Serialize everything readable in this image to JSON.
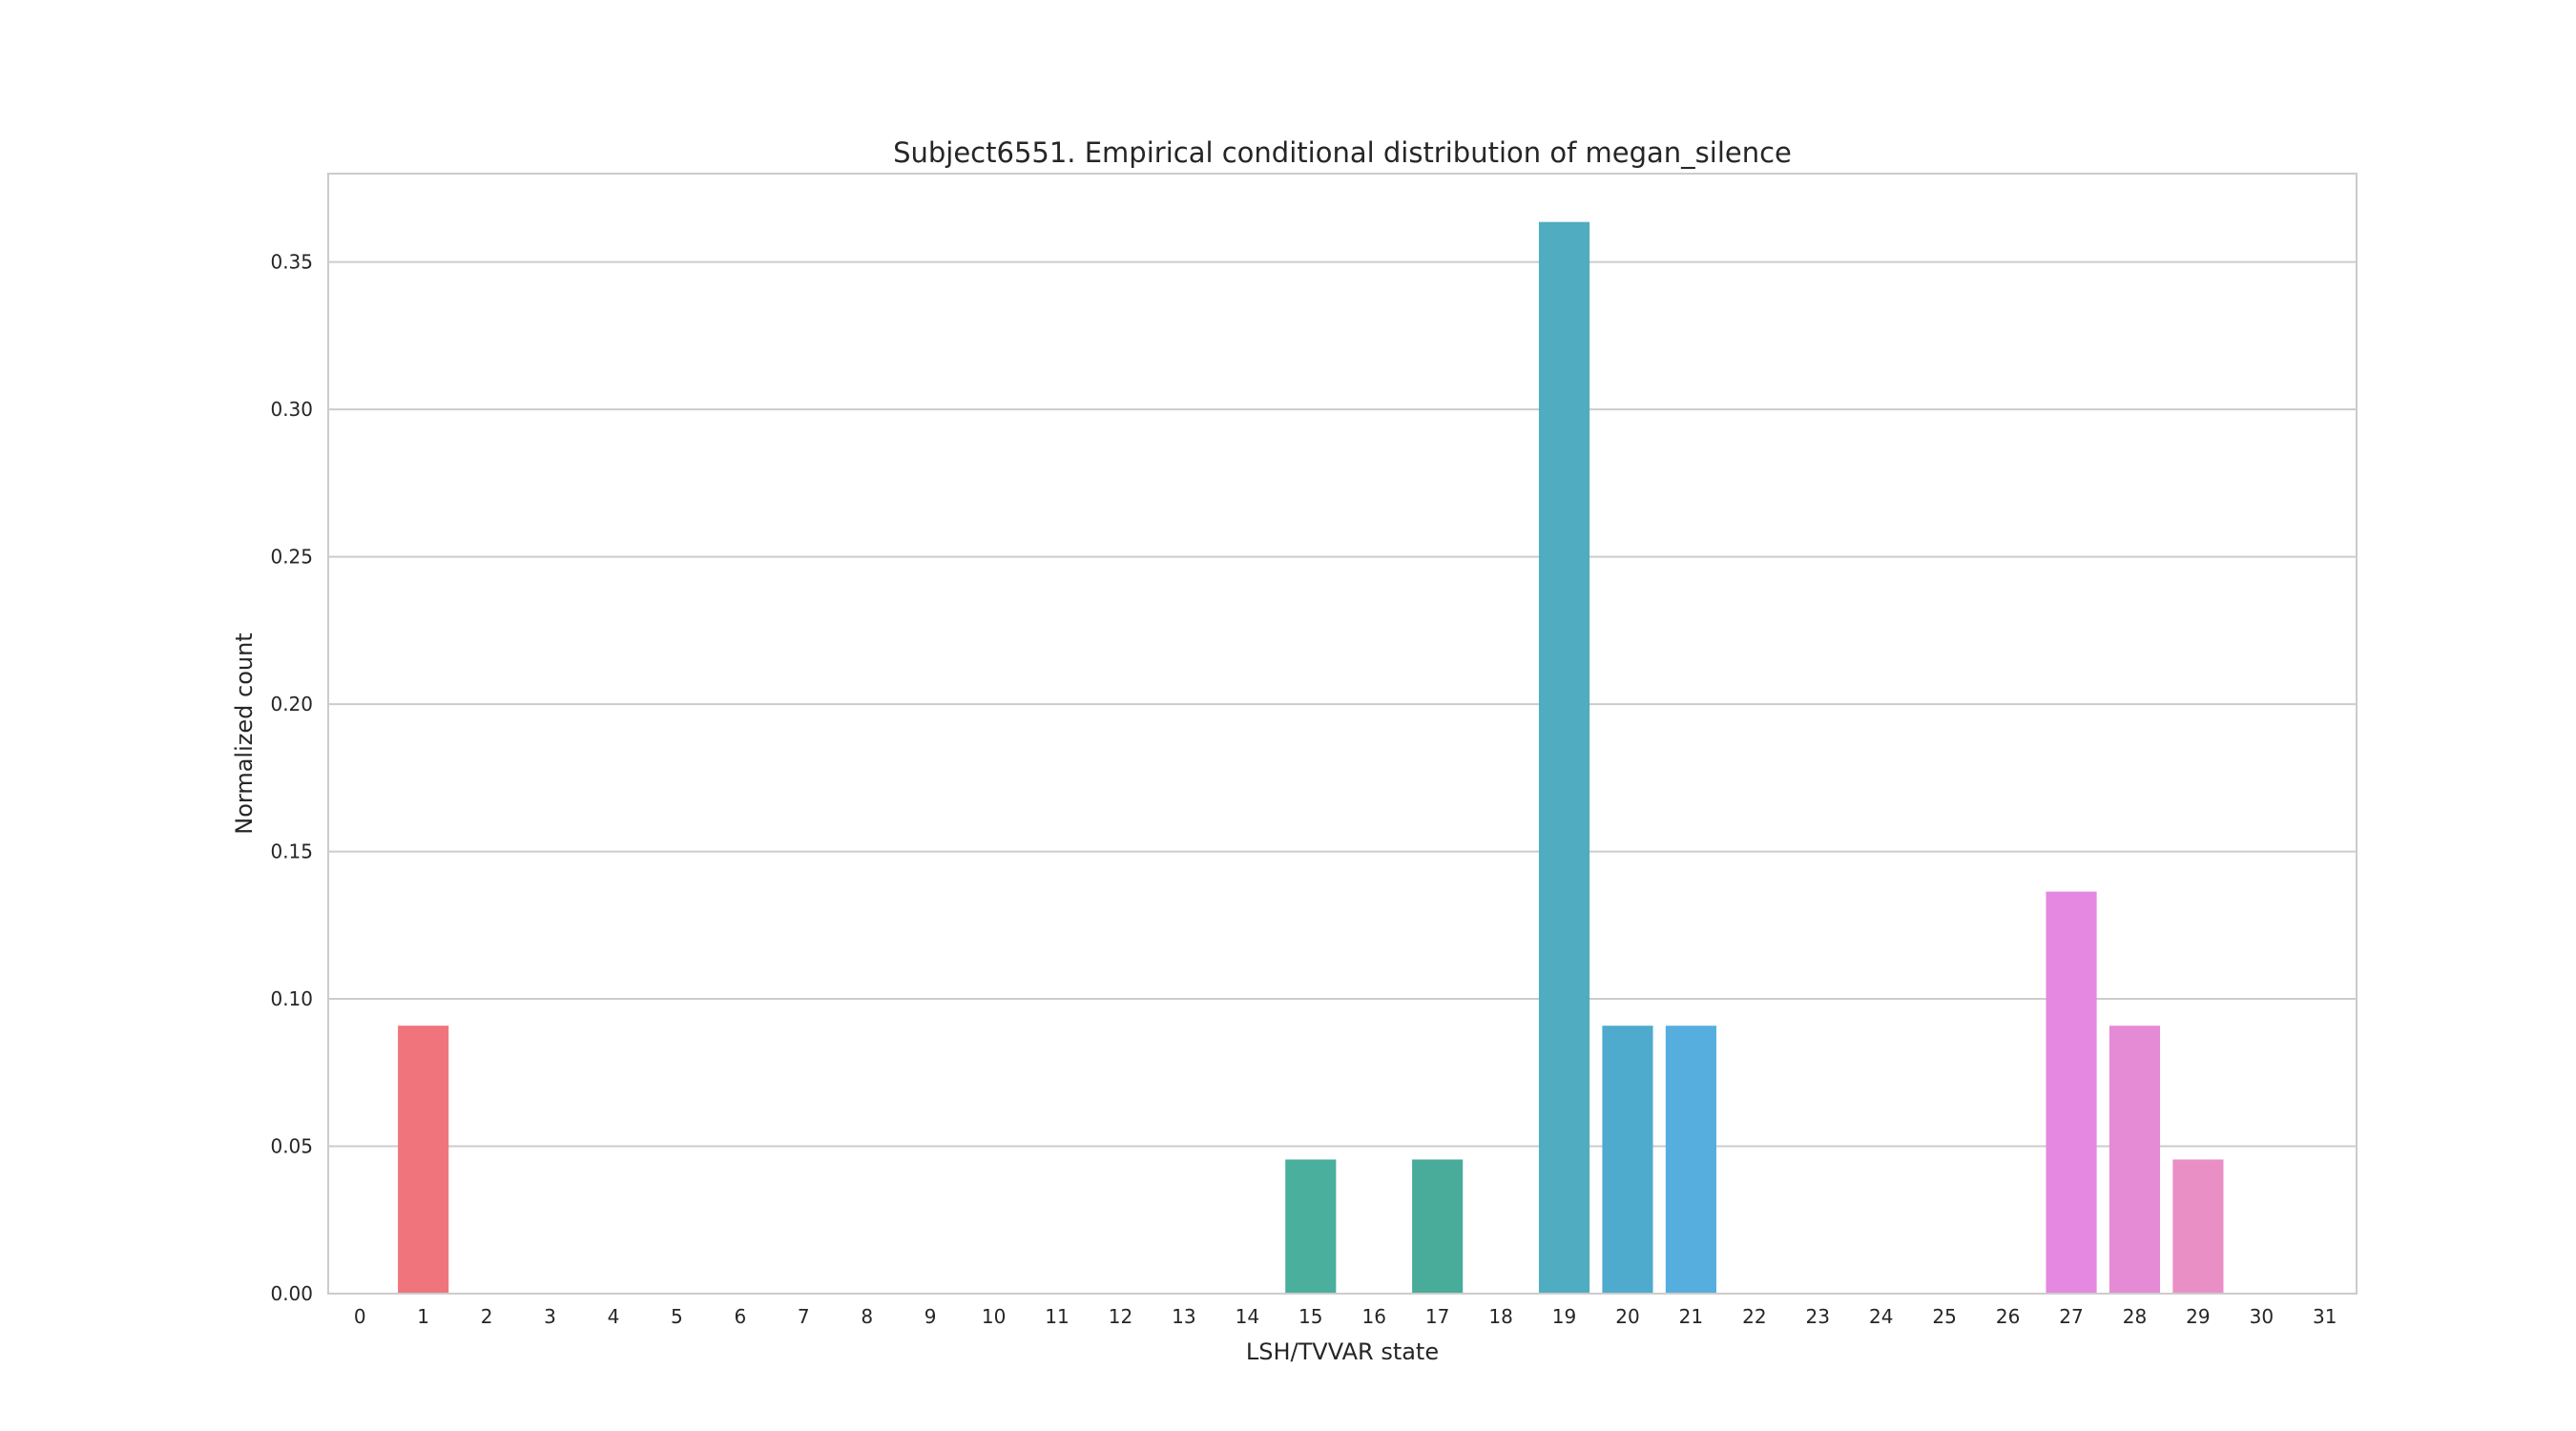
{
  "chart_data": {
    "type": "bar",
    "title": "Subject6551. Empirical conditional distribution of megan_silence",
    "xlabel": "LSH/TVVAR state",
    "ylabel": "Normalized count",
    "ylim": [
      0,
      0.38
    ],
    "yticks": [
      "0.00",
      "0.05",
      "0.10",
      "0.15",
      "0.20",
      "0.25",
      "0.30",
      "0.35"
    ],
    "grid": true,
    "categories": [
      "0",
      "1",
      "2",
      "3",
      "4",
      "5",
      "6",
      "7",
      "8",
      "9",
      "10",
      "11",
      "12",
      "13",
      "14",
      "15",
      "16",
      "17",
      "18",
      "19",
      "20",
      "21",
      "22",
      "23",
      "24",
      "25",
      "26",
      "27",
      "28",
      "29",
      "30",
      "31"
    ],
    "values": [
      0,
      0.0909,
      0,
      0,
      0,
      0,
      0,
      0,
      0,
      0,
      0,
      0,
      0,
      0,
      0,
      0.0455,
      0,
      0.0455,
      0,
      0.3636,
      0.0909,
      0.0909,
      0,
      0,
      0,
      0,
      0,
      0.1364,
      0.0909,
      0.0455,
      0,
      0
    ],
    "colors": [
      "#f77189",
      "#f0747c",
      "#e8836b",
      "#e29060",
      "#dc9a56",
      "#d5a14a",
      "#c8a73b",
      "#bdaa36",
      "#b0ad32",
      "#a3b031",
      "#94b42f",
      "#7fb831",
      "#64bb3a",
      "#40be46",
      "#32b772",
      "#4aaf9d",
      "#36b08c",
      "#49ab9a",
      "#37ad9a",
      "#50acc0",
      "#4fabce",
      "#56aedf",
      "#5eb0ea",
      "#6fb0f0",
      "#8ca8f5",
      "#a89ff5",
      "#c197f5",
      "#e488e2",
      "#e58ad5",
      "#ea8fc6",
      "#f08fc0",
      "#f38bb0"
    ]
  }
}
